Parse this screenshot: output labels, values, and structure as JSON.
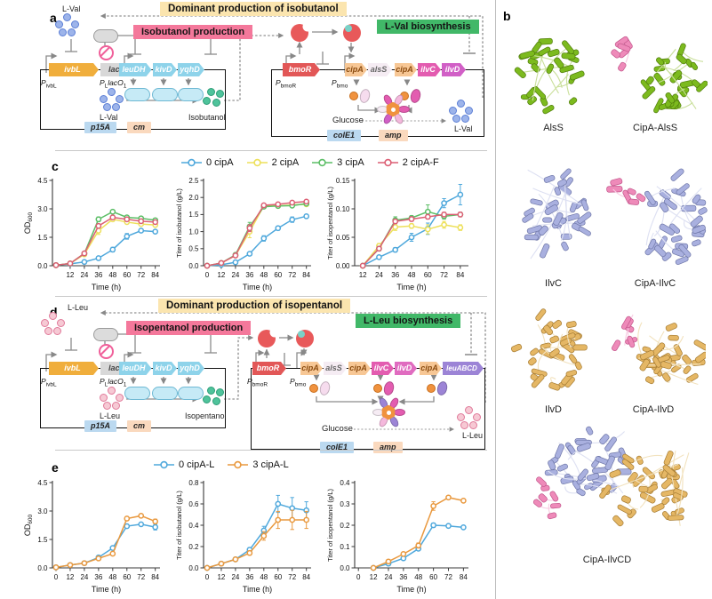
{
  "figure": {
    "letters": {
      "a": "a",
      "b": "b",
      "c": "c",
      "d": "d",
      "e": "e"
    }
  },
  "panel_a": {
    "title": "Dominant production of isobutanol",
    "production": "Isobutanol production",
    "biosynthesis": "L-Val biosynthesis",
    "aa": "L-Val",
    "aa_fill": "#9DB4EA",
    "aa_stroke": "#5C7FD6",
    "product": "Isobutanol",
    "prod_fill": "#4FC39B",
    "prod_stroke": "#2E9E78",
    "gene_ivbL": "ivbL",
    "gene_lacI": "lacI",
    "gene_bmoR": "bmoR",
    "operon": [
      "leuDH",
      "kivD",
      "yqhD"
    ],
    "promoters": {
      "p": "P",
      "ivbL": "ivbL",
      "L": "L",
      "lacO": "lacO",
      "one": "1",
      "bmoR": "bmoR",
      "bmo": "bmo"
    },
    "cassette": [
      {
        "t": "cipA",
        "bg": "#F7C795",
        "fg": "#8A4A0E"
      },
      {
        "t": "alsS",
        "bg": "#F5ECF3",
        "fg": "#666666"
      },
      {
        "t": "cipA",
        "bg": "#F7C795",
        "fg": "#8A4A0E"
      },
      {
        "t": "ilvC",
        "bg": "#E35CB0",
        "fg": "#ffffff"
      },
      {
        "t": "ilvD",
        "bg": "#D15FC6",
        "fg": "#ffffff"
      }
    ],
    "glucose": "Glucose",
    "ori_left": "p15A",
    "marker_left": "cm",
    "ori_right": "colE1",
    "marker_right": "amp"
  },
  "panel_d": {
    "title": "Dominant production of isopentanol",
    "production": "Isopentanol production",
    "biosynthesis": "L-Leu biosynthesis",
    "aa": "L-Leu",
    "aa_fill": "#F6C9D4",
    "aa_stroke": "#E07A9A",
    "product": "Isopentanol",
    "prod_fill": "#4FC39B",
    "prod_stroke": "#2E9E78",
    "gene_ivbL": "ivbL",
    "gene_lacI": "lacI",
    "gene_bmoR": "bmoR",
    "operon": [
      "leuDH",
      "kivD",
      "yqhD"
    ],
    "promoters": {
      "p": "P",
      "ivbL": "ivbL",
      "L": "L",
      "lacO": "lacO",
      "one": "1",
      "bmoR": "bmoR",
      "bmo": "bmo"
    },
    "cassette": [
      {
        "t": "cipA",
        "bg": "#F7C795",
        "fg": "#8A4A0E"
      },
      {
        "t": "alsS",
        "bg": "#F5ECF3",
        "fg": "#666666"
      },
      {
        "t": "cipA",
        "bg": "#F7C795",
        "fg": "#8A4A0E"
      },
      {
        "t": "ilvC",
        "bg": "#E35CB0",
        "fg": "#ffffff"
      },
      {
        "t": "ilvD",
        "bg": "#E06CC0",
        "fg": "#ffffff"
      },
      {
        "t": "cipA",
        "bg": "#F7C795",
        "fg": "#8A4A0E"
      },
      {
        "t": "leuABCD",
        "bg": "#9C84D6",
        "fg": "#ffffff"
      }
    ],
    "glucose": "Glucose",
    "ori_left": "p15A",
    "marker_left": "cm",
    "ori_right": "colE1",
    "marker_right": "amp"
  },
  "panel_b": {
    "items": [
      {
        "label": "AlsS"
      },
      {
        "label": "CipA-AlsS"
      },
      {
        "label": "IlvC"
      },
      {
        "label": "CipA-IlvC"
      },
      {
        "label": "IlvD"
      },
      {
        "label": "CipA-IlvD"
      },
      {
        "label": "CipA-IlvCD"
      }
    ],
    "palette": {
      "green": {
        "fill": "#7CBA1E",
        "stroke": "#507C0C",
        "loop": "#C9DF9A"
      },
      "peri": {
        "fill": "#A9B0DF",
        "stroke": "#6F77A8",
        "loop": "#DDE0F2"
      },
      "gold": {
        "fill": "#E5B765",
        "stroke": "#A67C33",
        "loop": "#F2E2BE"
      },
      "pink": {
        "fill": "#EE8AB9",
        "stroke": "#C2558B",
        "loop": "#F8CBE2"
      }
    }
  },
  "legend_c": [
    {
      "label": "0 cipA",
      "color": "#4FA8DC"
    },
    {
      "label": "2 cipA",
      "color": "#EDE05A"
    },
    {
      "label": "3 cipA",
      "color": "#5CBE66"
    },
    {
      "label": "2 cipA-F",
      "color": "#DC5F74"
    }
  ],
  "legend_e": [
    {
      "label": "0 cipA-L",
      "color": "#4FA8DC"
    },
    {
      "label": "3 cipA-L",
      "color": "#E9993F"
    }
  ],
  "chart_data": [
    {
      "type": "line",
      "panel": "c",
      "xlabel": "Time (h)",
      "ylabel": "OD",
      "ylabel_sub": "600",
      "xlim": [
        -3,
        88
      ],
      "ylim": [
        0,
        4.5
      ],
      "xticks": [
        12,
        24,
        36,
        48,
        60,
        72,
        84
      ],
      "yticks": [
        0,
        1.5,
        3,
        4.5
      ],
      "ydec": 1,
      "x": [
        0,
        12,
        24,
        36,
        48,
        60,
        72,
        84
      ],
      "series": [
        {
          "name": "0 cipA",
          "color": "#4FA8DC",
          "values": [
            0.03,
            0.1,
            0.2,
            0.4,
            0.85,
            1.55,
            1.85,
            1.8
          ],
          "err": [
            0,
            0,
            0,
            0.05,
            0.12,
            0.15,
            0.06,
            0.06
          ]
        },
        {
          "name": "2 cipA",
          "color": "#EDE05A",
          "values": [
            0.03,
            0.12,
            0.6,
            1.85,
            2.45,
            2.3,
            2.2,
            2.15
          ],
          "err": [
            0,
            0,
            0.05,
            0.2,
            0.1,
            0.06,
            0.05,
            0.05
          ]
        },
        {
          "name": "3 cipA",
          "color": "#5CBE66",
          "values": [
            0.03,
            0.12,
            0.65,
            2.45,
            2.85,
            2.55,
            2.5,
            2.4
          ],
          "err": [
            0,
            0,
            0.05,
            0.12,
            0.08,
            0.06,
            0.05,
            0.05
          ]
        },
        {
          "name": "2 cipA-F",
          "color": "#DC5F74",
          "values": [
            0.03,
            0.12,
            0.65,
            2.1,
            2.55,
            2.45,
            2.35,
            2.3
          ],
          "err": [
            0,
            0,
            0.05,
            0.1,
            0.06,
            0.05,
            0.05,
            0.05
          ]
        }
      ]
    },
    {
      "type": "line",
      "panel": "c",
      "xlabel": "Time (h)",
      "ylabel": "Titer of isobutanol (g/L)",
      "xlim": [
        -3,
        88
      ],
      "ylim": [
        0,
        2.5
      ],
      "xticks": [
        0,
        12,
        24,
        36,
        48,
        60,
        72,
        84
      ],
      "yticks": [
        0,
        0.5,
        1,
        1.5,
        2,
        2.5
      ],
      "ydec": 1,
      "x": [
        0,
        12,
        24,
        36,
        48,
        60,
        72,
        84
      ],
      "series": [
        {
          "name": "0 cipA",
          "color": "#4FA8DC",
          "values": [
            0,
            0.03,
            0.1,
            0.35,
            0.8,
            1.1,
            1.35,
            1.45
          ],
          "err": [
            0,
            0,
            0.02,
            0.05,
            0.08,
            0.06,
            0.08,
            0.05
          ]
        },
        {
          "name": "2 cipA",
          "color": "#EDE05A",
          "values": [
            0,
            0.08,
            0.3,
            1.0,
            1.75,
            1.75,
            1.78,
            1.8
          ],
          "err": [
            0,
            0,
            0.04,
            0.18,
            0.05,
            0.04,
            0.04,
            0.04
          ]
        },
        {
          "name": "3 cipA",
          "color": "#5CBE66",
          "values": [
            0,
            0.08,
            0.32,
            1.15,
            1.73,
            1.75,
            1.76,
            1.82
          ],
          "err": [
            0,
            0,
            0.04,
            0.12,
            0.05,
            0.04,
            0.04,
            0.05
          ]
        },
        {
          "name": "2 cipA-F",
          "color": "#DC5F74",
          "values": [
            0,
            0.08,
            0.3,
            1.1,
            1.77,
            1.8,
            1.85,
            1.88
          ],
          "err": [
            0,
            0,
            0.04,
            0.1,
            0.04,
            0.04,
            0.04,
            0.04
          ]
        }
      ]
    },
    {
      "type": "line",
      "panel": "c",
      "xlabel": "Time (h)",
      "ylabel": "Titer of isopentanol (g/L)",
      "xlim": [
        6,
        90
      ],
      "ylim": [
        0,
        0.15
      ],
      "xticks": [
        12,
        24,
        36,
        48,
        60,
        72,
        84
      ],
      "yticks": [
        0,
        0.05,
        0.1,
        0.15
      ],
      "ydec": 2,
      "x": [
        12,
        24,
        36,
        48,
        60,
        72,
        84
      ],
      "series": [
        {
          "name": "0 cipA",
          "color": "#4FA8DC",
          "values": [
            0,
            0.015,
            0.028,
            0.05,
            0.065,
            0.11,
            0.125
          ],
          "err": [
            0,
            0.003,
            0.004,
            0.007,
            0.01,
            0.008,
            0.018
          ]
        },
        {
          "name": "2 cipA",
          "color": "#EDE05A",
          "values": [
            0,
            0.035,
            0.068,
            0.07,
            0.064,
            0.072,
            0.067
          ],
          "err": [
            0,
            0.004,
            0.006,
            0.004,
            0.008,
            0.006,
            0.005
          ]
        },
        {
          "name": "3 cipA",
          "color": "#5CBE66",
          "values": [
            0,
            0.03,
            0.08,
            0.084,
            0.095,
            0.087,
            0.09
          ],
          "err": [
            0,
            0.004,
            0.006,
            0.004,
            0.012,
            0.005,
            0.004
          ]
        },
        {
          "name": "2 cipA-F",
          "color": "#DC5F74",
          "values": [
            0,
            0.03,
            0.078,
            0.082,
            0.086,
            0.09,
            0.09
          ],
          "err": [
            0,
            0.003,
            0.004,
            0.004,
            0.004,
            0.004,
            0.004
          ]
        }
      ]
    },
    {
      "type": "line",
      "panel": "e",
      "xlabel": "Time (h)",
      "ylabel": "OD",
      "ylabel_sub": "600",
      "xlim": [
        -3,
        88
      ],
      "ylim": [
        0,
        4.5
      ],
      "xticks": [
        0,
        12,
        24,
        36,
        48,
        60,
        72,
        84
      ],
      "yticks": [
        0,
        1.5,
        3,
        4.5
      ],
      "ydec": 1,
      "x": [
        0,
        12,
        24,
        36,
        48,
        60,
        72,
        84
      ],
      "series": [
        {
          "name": "0 cipA-L",
          "color": "#4FA8DC",
          "values": [
            0.03,
            0.15,
            0.25,
            0.55,
            1.05,
            2.2,
            2.3,
            2.15
          ],
          "err": [
            0,
            0,
            0,
            0.05,
            0.08,
            0.1,
            0.08,
            0.15
          ]
        },
        {
          "name": "3 cipA-L",
          "color": "#E9993F",
          "values": [
            0.03,
            0.15,
            0.25,
            0.5,
            0.75,
            2.6,
            2.75,
            2.45
          ],
          "err": [
            0,
            0,
            0,
            0.05,
            0.05,
            0.1,
            0.08,
            0.12
          ]
        }
      ]
    },
    {
      "type": "line",
      "panel": "e",
      "xlabel": "Time (h)",
      "ylabel": "Titer of isobutanol (g/L)",
      "xlim": [
        -3,
        88
      ],
      "ylim": [
        0,
        0.8
      ],
      "xticks": [
        0,
        12,
        24,
        36,
        48,
        60,
        72,
        84
      ],
      "yticks": [
        0,
        0.2,
        0.4,
        0.6,
        0.8
      ],
      "ydec": 1,
      "x": [
        0,
        12,
        24,
        36,
        48,
        60,
        72,
        84
      ],
      "series": [
        {
          "name": "0 cipA-L",
          "color": "#4FA8DC",
          "values": [
            0,
            0.04,
            0.08,
            0.17,
            0.35,
            0.6,
            0.56,
            0.54
          ],
          "err": [
            0,
            0,
            0.01,
            0.02,
            0.04,
            0.08,
            0.1,
            0.08
          ]
        },
        {
          "name": "3 cipA-L",
          "color": "#E9993F",
          "values": [
            0,
            0.04,
            0.08,
            0.14,
            0.3,
            0.45,
            0.45,
            0.45
          ],
          "err": [
            0,
            0,
            0.01,
            0.02,
            0.04,
            0.08,
            0.09,
            0.08
          ]
        }
      ]
    },
    {
      "type": "line",
      "panel": "e",
      "xlabel": "Time (h)",
      "ylabel": "Titer of isopentanol (g/L)",
      "xlim": [
        -3,
        88
      ],
      "ylim": [
        0,
        0.4
      ],
      "xticks": [
        0,
        12,
        24,
        36,
        48,
        60,
        72,
        84
      ],
      "yticks": [
        0,
        0.1,
        0.2,
        0.3,
        0.4
      ],
      "ydec": 1,
      "x": [
        12,
        24,
        36,
        48,
        60,
        72,
        84
      ],
      "series": [
        {
          "name": "0 cipA-L",
          "color": "#4FA8DC",
          "values": [
            0,
            0.02,
            0.045,
            0.09,
            0.2,
            0.197,
            0.19
          ],
          "err": [
            0,
            0.003,
            0.005,
            0.008,
            0.01,
            0.006,
            0.006
          ]
        },
        {
          "name": "3 cipA-L",
          "color": "#E9993F",
          "values": [
            0,
            0.03,
            0.065,
            0.105,
            0.29,
            0.33,
            0.315
          ],
          "err": [
            0,
            0.004,
            0.006,
            0.012,
            0.02,
            0.006,
            0.008
          ]
        }
      ]
    }
  ]
}
